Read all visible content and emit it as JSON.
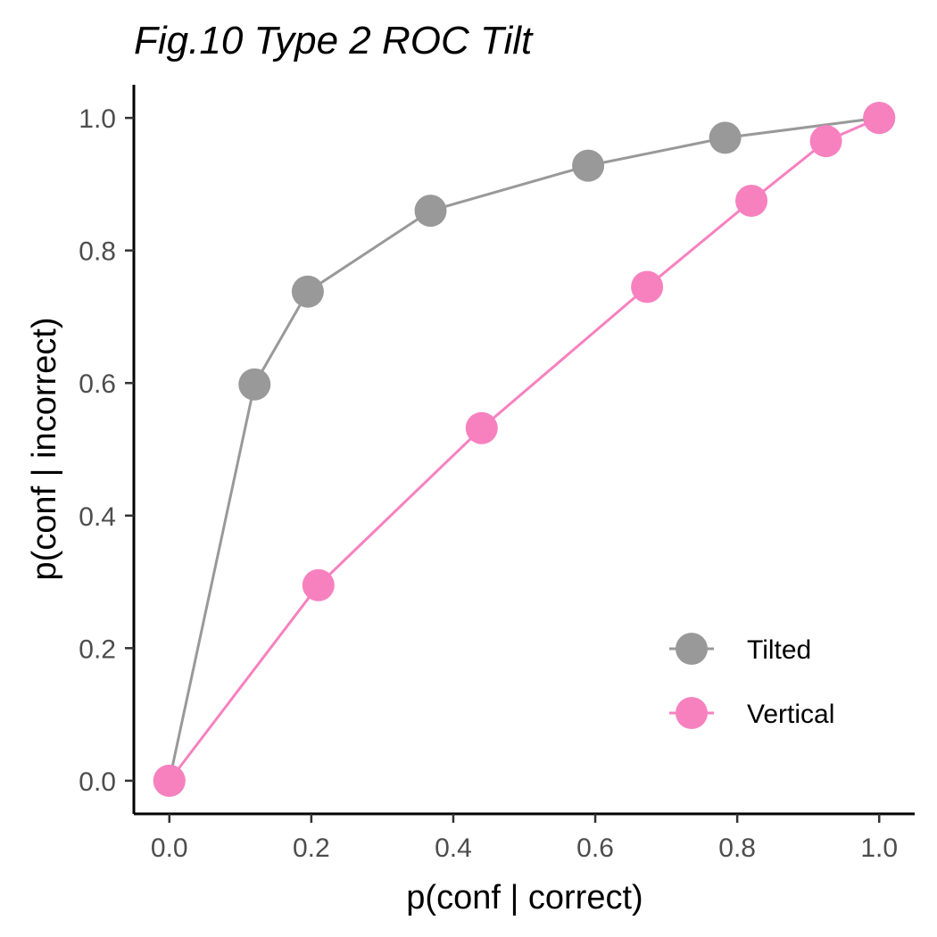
{
  "chart_data": {
    "type": "line",
    "title": "Fig.10 Type 2 ROC Tilt",
    "xlabel": "p(conf | correct)",
    "ylabel": "p(conf | incorrect)",
    "xlim": [
      -0.05,
      1.05
    ],
    "ylim": [
      -0.05,
      1.05
    ],
    "xticks": [
      "0.0",
      "0.2",
      "0.4",
      "0.6",
      "0.8",
      "1.0"
    ],
    "yticks": [
      "0.0",
      "0.2",
      "0.4",
      "0.6",
      "0.8",
      "1.0"
    ],
    "grid": false,
    "legend_position": "bottom-right",
    "series": [
      {
        "name": "Tilted",
        "color": "#999999",
        "points": [
          {
            "x": 0.0,
            "y": 0.0
          },
          {
            "x": 0.12,
            "y": 0.598
          },
          {
            "x": 0.195,
            "y": 0.738
          },
          {
            "x": 0.368,
            "y": 0.86
          },
          {
            "x": 0.59,
            "y": 0.928
          },
          {
            "x": 0.783,
            "y": 0.97
          },
          {
            "x": 1.0,
            "y": 1.0
          }
        ]
      },
      {
        "name": "Vertical",
        "color": "#F781BF",
        "points": [
          {
            "x": 0.0,
            "y": 0.0
          },
          {
            "x": 0.21,
            "y": 0.295
          },
          {
            "x": 0.44,
            "y": 0.532
          },
          {
            "x": 0.673,
            "y": 0.745
          },
          {
            "x": 0.82,
            "y": 0.875
          },
          {
            "x": 0.925,
            "y": 0.965
          },
          {
            "x": 1.0,
            "y": 1.0
          }
        ]
      }
    ]
  }
}
